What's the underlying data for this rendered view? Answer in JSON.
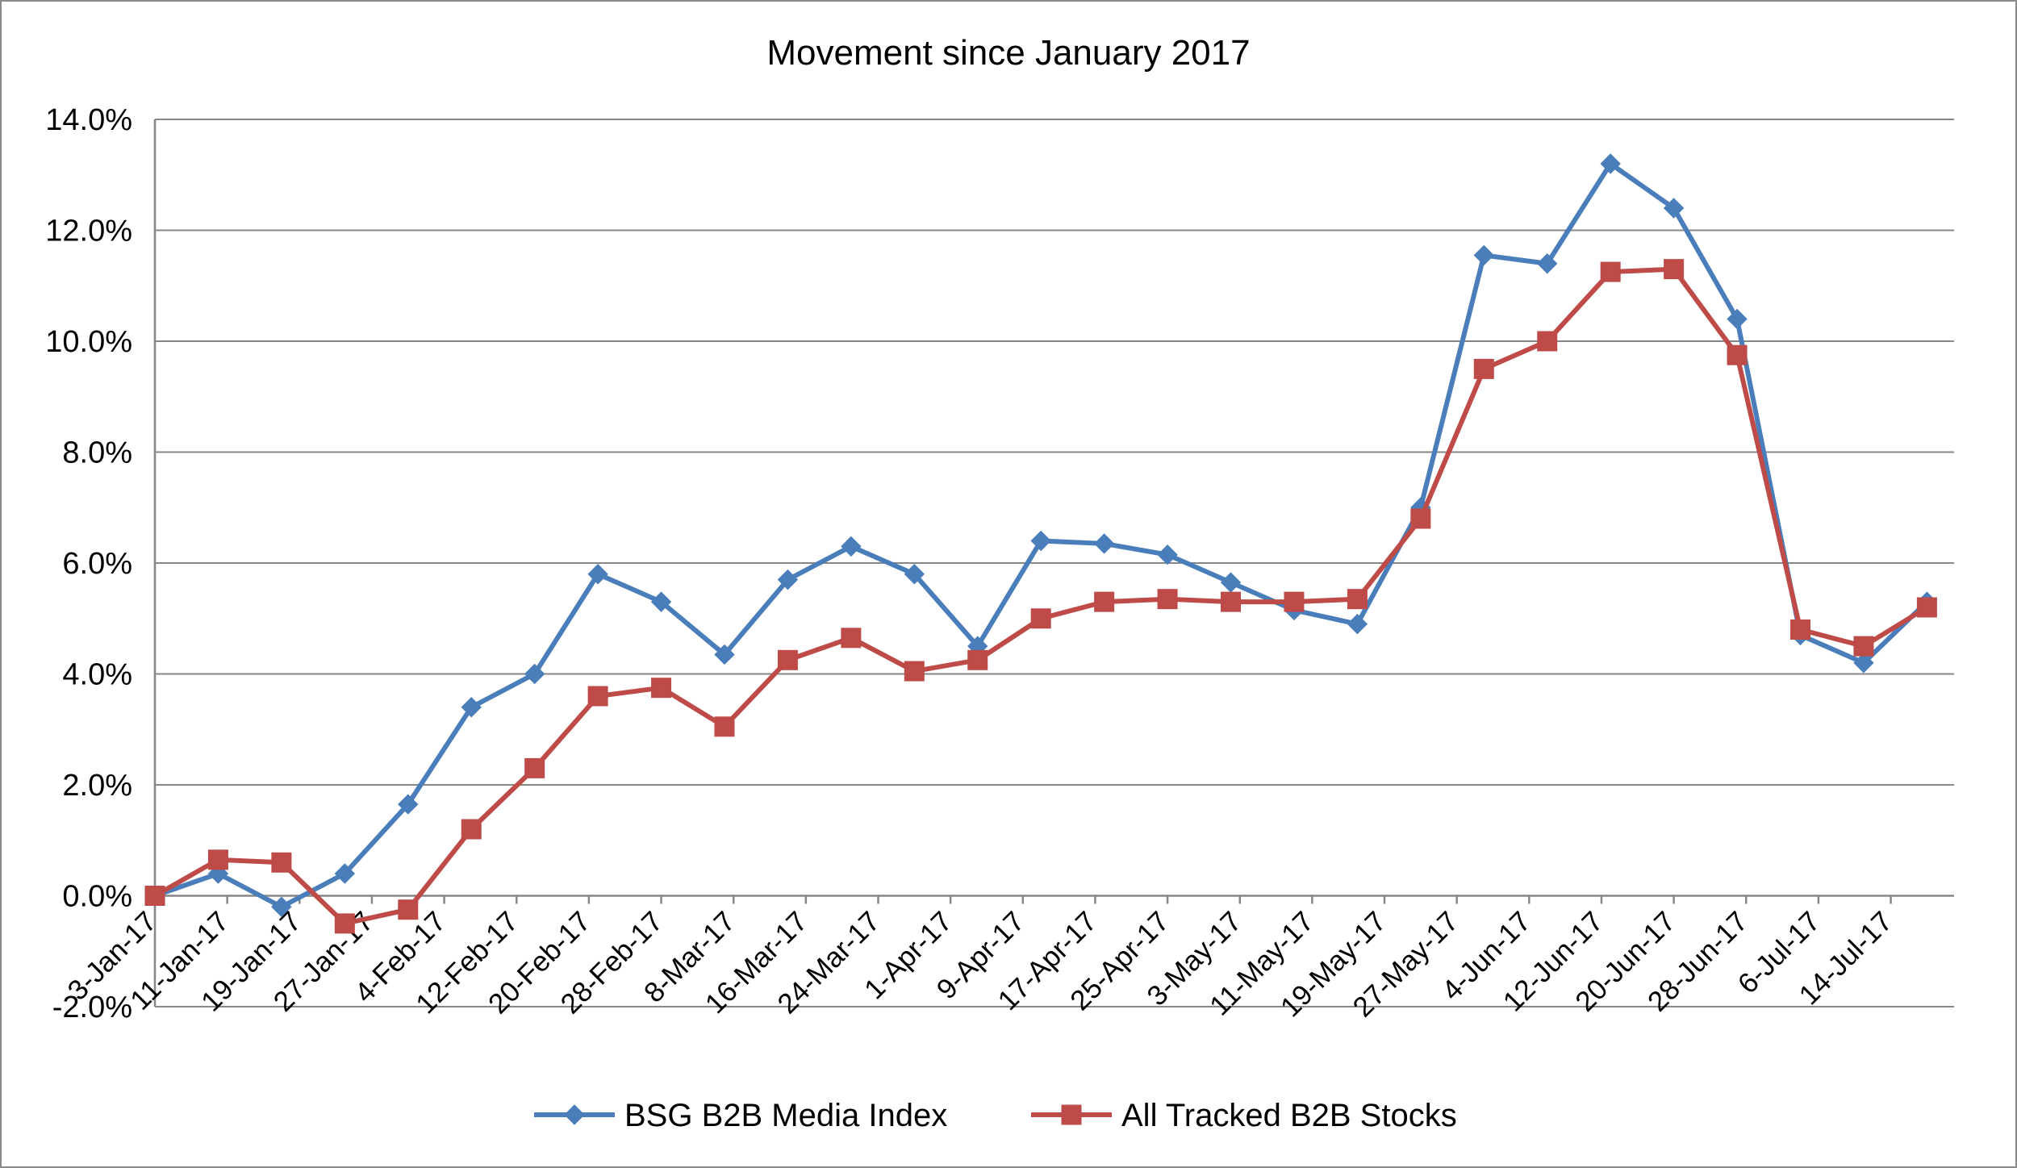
{
  "chart_data": {
    "type": "line",
    "title": "Movement since January 2017",
    "xlabel": "",
    "ylabel": "",
    "ylim": [
      -2.0,
      14.0
    ],
    "y_ticks": [
      -2.0,
      0.0,
      2.0,
      4.0,
      6.0,
      8.0,
      10.0,
      12.0,
      14.0
    ],
    "y_tick_labels": [
      "-2.0%",
      "0.0%",
      "2.0%",
      "4.0%",
      "6.0%",
      "8.0%",
      "10.0%",
      "12.0%",
      "14.0%"
    ],
    "x_tick_labels": [
      "3-Jan-17",
      "11-Jan-17",
      "19-Jan-17",
      "27-Jan-17",
      "4-Feb-17",
      "12-Feb-17",
      "20-Feb-17",
      "28-Feb-17",
      "8-Mar-17",
      "16-Mar-17",
      "24-Mar-17",
      "1-Apr-17",
      "9-Apr-17",
      "17-Apr-17",
      "25-Apr-17",
      "3-May-17",
      "11-May-17",
      "19-May-17",
      "27-May-17",
      "4-Jun-17",
      "12-Jun-17",
      "20-Jun-17",
      "28-Jun-17",
      "6-Jul-17",
      "14-Jul-17"
    ],
    "x_range": [
      "2017-01-03",
      "2017-07-21"
    ],
    "grid": true,
    "legend_position": "bottom",
    "series": [
      {
        "name": "BSG B2B Media Index",
        "color": "#4a7ebb",
        "marker": "diamond",
        "x": [
          "2017-01-03",
          "2017-01-10",
          "2017-01-17",
          "2017-01-24",
          "2017-01-31",
          "2017-02-07",
          "2017-02-14",
          "2017-02-21",
          "2017-02-28",
          "2017-03-07",
          "2017-03-14",
          "2017-03-21",
          "2017-03-28",
          "2017-04-04",
          "2017-04-11",
          "2017-04-18",
          "2017-04-25",
          "2017-05-02",
          "2017-05-09",
          "2017-05-16",
          "2017-05-23",
          "2017-05-30",
          "2017-06-06",
          "2017-06-13",
          "2017-06-20",
          "2017-06-27",
          "2017-07-04",
          "2017-07-11",
          "2017-07-18"
        ],
        "values": [
          0.0,
          0.4,
          -0.2,
          0.4,
          1.65,
          3.4,
          4.0,
          5.8,
          5.3,
          4.35,
          5.7,
          6.3,
          5.8,
          4.5,
          6.4,
          6.35,
          6.15,
          5.65,
          5.15,
          4.9,
          7.0,
          11.55,
          11.4,
          13.2,
          12.4,
          10.4,
          4.7,
          4.2,
          5.3
        ]
      },
      {
        "name": "All Tracked B2B Stocks",
        "color": "#be4b48",
        "marker": "square",
        "x": [
          "2017-01-03",
          "2017-01-10",
          "2017-01-17",
          "2017-01-24",
          "2017-01-31",
          "2017-02-07",
          "2017-02-14",
          "2017-02-21",
          "2017-02-28",
          "2017-03-07",
          "2017-03-14",
          "2017-03-21",
          "2017-03-28",
          "2017-04-04",
          "2017-04-11",
          "2017-04-18",
          "2017-04-25",
          "2017-05-02",
          "2017-05-09",
          "2017-05-16",
          "2017-05-23",
          "2017-05-30",
          "2017-06-06",
          "2017-06-13",
          "2017-06-20",
          "2017-06-27",
          "2017-07-04",
          "2017-07-11",
          "2017-07-18"
        ],
        "values": [
          0.0,
          0.65,
          0.6,
          -0.5,
          -0.25,
          1.2,
          2.3,
          3.6,
          3.75,
          3.05,
          4.25,
          4.65,
          4.05,
          4.25,
          5.0,
          5.3,
          5.35,
          5.3,
          5.3,
          5.35,
          6.8,
          9.5,
          10.0,
          11.25,
          11.3,
          9.75,
          4.8,
          4.5,
          5.2
        ]
      }
    ]
  }
}
